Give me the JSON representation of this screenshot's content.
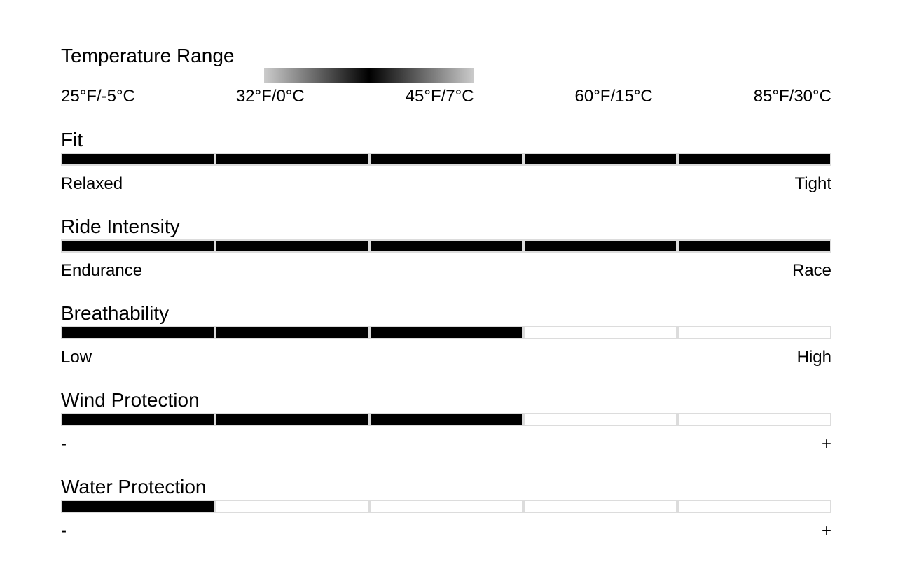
{
  "temperature": {
    "title": "Temperature Range",
    "labels": [
      "25°F/-5°C",
      "32°F/0°C",
      "45°F/7°C",
      "60°F/15°C",
      "85°F/30°C"
    ],
    "gradient_colors": [
      "#cccccc",
      "#000000",
      "#cccccc"
    ]
  },
  "colors": {
    "filled": "#000000",
    "empty_border": "#dcdcdc"
  },
  "ratings": [
    {
      "title": "Fit",
      "value": 5,
      "max": 5,
      "low": "Relaxed",
      "high": "Tight"
    },
    {
      "title": "Ride Intensity",
      "value": 5,
      "max": 5,
      "low": "Endurance",
      "high": "Race"
    },
    {
      "title": "Breathability",
      "value": 3,
      "max": 5,
      "low": "Low",
      "high": "High"
    },
    {
      "title": "Wind Protection",
      "value": 3,
      "max": 5,
      "low": "-",
      "high": "+"
    },
    {
      "title": "Water Protection",
      "value": 1,
      "max": 5,
      "low": "-",
      "high": "+"
    }
  ]
}
